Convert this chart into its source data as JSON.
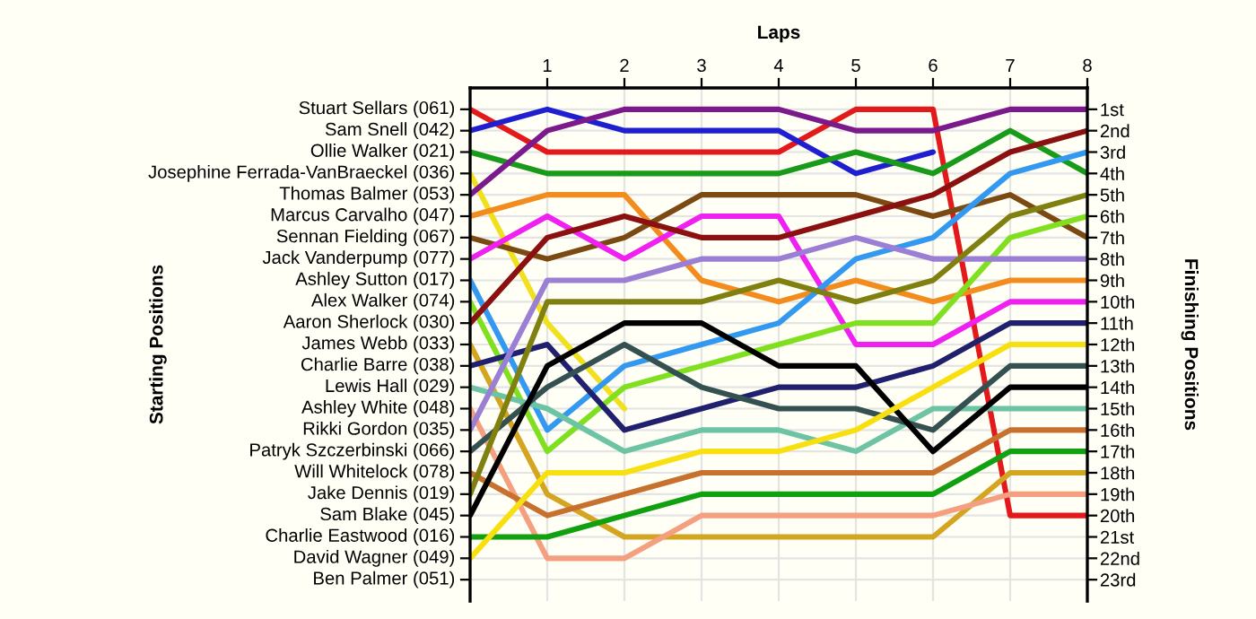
{
  "chart_data": {
    "type": "line",
    "xlabel": "Laps",
    "ylabel": "Finishing Positions",
    "xlim": [
      0,
      8
    ],
    "xticks": [
      1,
      2,
      3,
      4,
      5,
      6,
      7,
      8
    ],
    "ylim": [
      24,
      0
    ],
    "yticks": [
      {
        "value": 1,
        "label": "1st"
      },
      {
        "value": 2,
        "label": "2nd"
      },
      {
        "value": 3,
        "label": "3rd"
      },
      {
        "value": 4,
        "label": "4th"
      },
      {
        "value": 5,
        "label": "5th"
      },
      {
        "value": 6,
        "label": "6th"
      },
      {
        "value": 7,
        "label": "7th"
      },
      {
        "value": 8,
        "label": "8th"
      },
      {
        "value": 9,
        "label": "9th"
      },
      {
        "value": 10,
        "label": "10th"
      },
      {
        "value": 11,
        "label": "11th"
      },
      {
        "value": 12,
        "label": "12th"
      },
      {
        "value": 13,
        "label": "13th"
      },
      {
        "value": 14,
        "label": "14th"
      },
      {
        "value": 15,
        "label": "15th"
      },
      {
        "value": 16,
        "label": "16th"
      },
      {
        "value": 17,
        "label": "17th"
      },
      {
        "value": 18,
        "label": "18th"
      },
      {
        "value": 19,
        "label": "19th"
      },
      {
        "value": 20,
        "label": "20th"
      },
      {
        "value": 21,
        "label": "21st"
      },
      {
        "value": 22,
        "label": "22nd"
      },
      {
        "value": 23,
        "label": "23rd"
      }
    ],
    "annotations": [
      "Starting Positions",
      "Stuart Sellars (061)",
      "Sam Snell (042)",
      "Ollie Walker (021)",
      "Josephine Ferrada-VanBraeckel (036)",
      "Thomas Balmer (053)",
      "Marcus Carvalho (047)",
      "Sennan Fielding (067)",
      "Jack Vanderpump (077)",
      "Ashley Sutton (017)",
      "Alex Walker (074)",
      "Aaron Sherlock (030)",
      "James Webb (033)",
      "Charlie Barre (038)",
      "Lewis Hall (029)",
      "Ashley White (048)",
      "Rikki Gordon (035)",
      "Patryk Szczerbinski (066)",
      "Will Whitelock (078)",
      "Jake Dennis (019)",
      "Sam Blake (045)",
      "Charlie Eastwood (016)",
      "David Wagner (049)",
      "Ben Palmer (051)"
    ],
    "x": [
      0,
      1,
      2,
      3,
      4,
      5,
      6,
      7,
      8
    ],
    "grid": true,
    "marker": "none",
    "line_style": "solid",
    "series": [
      {
        "color": "#e31a1c",
        "values": [
          1,
          3,
          3,
          3,
          3,
          1,
          1,
          20,
          20
        ]
      },
      {
        "color": "#1f1fd0",
        "values": [
          2,
          1,
          2,
          2,
          2,
          4,
          3,
          null,
          null
        ]
      },
      {
        "color": "#1a9a1a",
        "values": [
          3,
          4,
          4,
          4,
          4,
          3,
          4,
          2,
          4
        ]
      },
      {
        "color": "#f0e020",
        "values": [
          4,
          11,
          15,
          null,
          null,
          null,
          null,
          null,
          null
        ]
      },
      {
        "color": "#7b1a8c",
        "values": [
          5,
          2,
          1,
          1,
          1,
          2,
          2,
          1,
          1
        ]
      },
      {
        "color": "#f28c1e",
        "values": [
          6,
          5,
          5,
          9,
          10,
          9,
          10,
          9,
          9
        ]
      },
      {
        "color": "#7b4a12",
        "values": [
          7,
          8,
          7,
          5,
          5,
          5,
          6,
          5,
          7
        ]
      },
      {
        "color": "#f020f0",
        "values": [
          8,
          6,
          8,
          6,
          6,
          12,
          12,
          10,
          10
        ]
      },
      {
        "color": "#3399f0",
        "values": [
          9,
          16,
          13,
          12,
          11,
          8,
          7,
          4,
          3
        ]
      },
      {
        "color": "#80e020",
        "values": [
          10,
          17,
          14,
          13,
          12,
          11,
          11,
          7,
          6
        ]
      },
      {
        "color": "#8b1010",
        "values": [
          11,
          7,
          6,
          7,
          7,
          6,
          5,
          3,
          2
        ]
      },
      {
        "color": "#d4a520",
        "values": [
          12,
          19,
          21,
          21,
          21,
          21,
          21,
          18,
          18
        ]
      },
      {
        "color": "#20206e",
        "values": [
          13,
          12,
          16,
          15,
          14,
          14,
          13,
          11,
          11
        ]
      },
      {
        "color": "#6cc4a4",
        "values": [
          14,
          15,
          17,
          16,
          16,
          17,
          15,
          15,
          15
        ]
      },
      {
        "color": "#f4a080",
        "values": [
          15,
          22,
          22,
          20,
          20,
          20,
          20,
          19,
          19
        ]
      },
      {
        "color": "#9b7fd4",
        "values": [
          16,
          9,
          9,
          8,
          8,
          7,
          8,
          8,
          8
        ]
      },
      {
        "color": "#355050",
        "values": [
          17,
          14,
          12,
          14,
          15,
          15,
          16,
          13,
          13
        ]
      },
      {
        "color": "#c8702e",
        "values": [
          18,
          20,
          19,
          18,
          18,
          18,
          18,
          16,
          16
        ]
      },
      {
        "color": "#808010",
        "values": [
          19,
          10,
          10,
          10,
          9,
          10,
          9,
          6,
          5
        ]
      },
      {
        "color": "#000000",
        "values": [
          20,
          13,
          11,
          11,
          13,
          13,
          17,
          14,
          14
        ]
      },
      {
        "color": "#10a010",
        "values": [
          21,
          21,
          20,
          19,
          19,
          19,
          19,
          17,
          17
        ]
      },
      {
        "color": "#f8e010",
        "values": [
          22,
          18,
          18,
          17,
          17,
          16,
          14,
          12,
          12
        ]
      }
    ]
  }
}
